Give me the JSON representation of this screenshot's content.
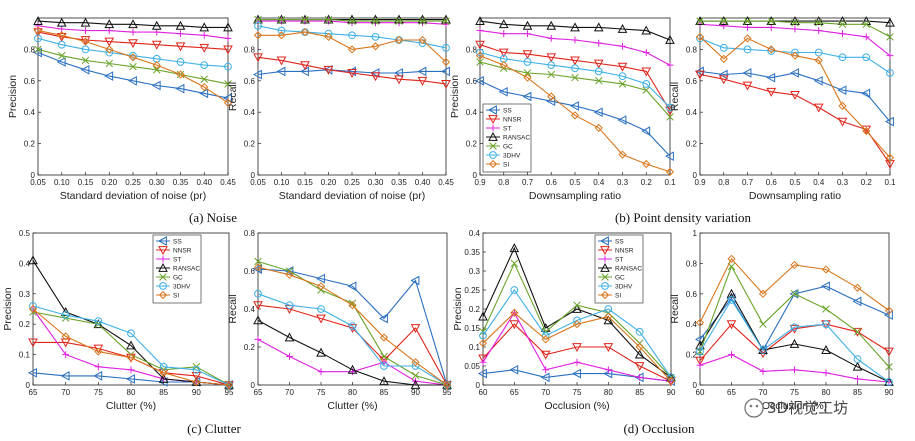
{
  "series_names": [
    "SS",
    "NNSR",
    "ST",
    "RANSAC",
    "GC",
    "3DHV",
    "SI"
  ],
  "series_styles": [
    {
      "name": "SS",
      "color": "#2a6fc0",
      "marker": "tri-left"
    },
    {
      "name": "NNSR",
      "color": "#e0241b",
      "marker": "tri-down"
    },
    {
      "name": "ST",
      "color": "#e020e0",
      "marker": "plus"
    },
    {
      "name": "RANSAC",
      "color": "#111111",
      "marker": "tri-up"
    },
    {
      "name": "GC",
      "color": "#6aa32a",
      "marker": "x"
    },
    {
      "name": "3DHV",
      "color": "#3fb0e6",
      "marker": "circle"
    },
    {
      "name": "SI",
      "color": "#d9761c",
      "marker": "diamond"
    }
  ],
  "captions": {
    "a": "(a)  Noise",
    "b": "(b)  Point density variation",
    "c": "(c)  Clutter",
    "d": "(d)  Occlusion"
  },
  "watermark": "3D视觉工坊",
  "chart_data": [
    {
      "id": "a-precision",
      "type": "line",
      "xlabel": "Standard deviation of noise (pr)",
      "ylabel": "Precision",
      "x": [
        0.05,
        0.1,
        0.15,
        0.2,
        0.25,
        0.3,
        0.35,
        0.4,
        0.45
      ],
      "xticks": [
        "0.05",
        "0.10",
        "0.15",
        "0.20",
        "0.25",
        "0.30",
        "0.35",
        "0.40",
        "0.45"
      ],
      "ylim": [
        0,
        1
      ],
      "yticks": [
        "0",
        "0.2",
        "0.4",
        "0.6",
        "0.8"
      ],
      "legend": false,
      "series": [
        {
          "name": "SS",
          "values": [
            0.78,
            0.72,
            0.67,
            0.63,
            0.6,
            0.57,
            0.55,
            0.52,
            0.49
          ]
        },
        {
          "name": "NNSR",
          "values": [
            0.91,
            0.88,
            0.86,
            0.85,
            0.84,
            0.83,
            0.82,
            0.81,
            0.8
          ]
        },
        {
          "name": "ST",
          "values": [
            0.95,
            0.93,
            0.92,
            0.92,
            0.91,
            0.91,
            0.9,
            0.89,
            0.87
          ]
        },
        {
          "name": "RANSAC",
          "values": [
            0.98,
            0.97,
            0.97,
            0.96,
            0.96,
            0.95,
            0.95,
            0.94,
            0.94
          ]
        },
        {
          "name": "GC",
          "values": [
            0.8,
            0.76,
            0.73,
            0.71,
            0.69,
            0.67,
            0.64,
            0.61,
            0.58
          ]
        },
        {
          "name": "3DHV",
          "values": [
            0.87,
            0.83,
            0.8,
            0.78,
            0.76,
            0.74,
            0.72,
            0.7,
            0.69
          ]
        },
        {
          "name": "SI",
          "values": [
            0.92,
            0.89,
            0.85,
            0.8,
            0.75,
            0.7,
            0.64,
            0.56,
            0.46
          ]
        }
      ]
    },
    {
      "id": "a-recall",
      "type": "line",
      "xlabel": "Standard deviation of noise (pr)",
      "ylabel": "Recall",
      "x": [
        0.05,
        0.1,
        0.15,
        0.2,
        0.25,
        0.3,
        0.35,
        0.4,
        0.45
      ],
      "xticks": [
        "0.05",
        "0.10",
        "0.15",
        "0.20",
        "0.25",
        "0.30",
        "0.35",
        "0.40",
        "0.45"
      ],
      "ylim": [
        0,
        1
      ],
      "yticks": [
        "0",
        "0.2",
        "0.4",
        "0.6",
        "0.8"
      ],
      "legend": false,
      "series": [
        {
          "name": "SS",
          "values": [
            0.64,
            0.66,
            0.66,
            0.67,
            0.66,
            0.65,
            0.65,
            0.66,
            0.66
          ]
        },
        {
          "name": "NNSR",
          "values": [
            0.75,
            0.73,
            0.7,
            0.67,
            0.65,
            0.63,
            0.61,
            0.6,
            0.58
          ]
        },
        {
          "name": "ST",
          "values": [
            0.98,
            0.98,
            0.98,
            0.98,
            0.97,
            0.97,
            0.97,
            0.97,
            0.96
          ]
        },
        {
          "name": "RANSAC",
          "values": [
            0.99,
            0.99,
            0.99,
            0.99,
            0.99,
            0.99,
            0.99,
            0.99,
            0.99
          ]
        },
        {
          "name": "GC",
          "values": [
            0.99,
            0.99,
            0.99,
            0.99,
            0.98,
            0.98,
            0.98,
            0.98,
            0.98
          ]
        },
        {
          "name": "3DHV",
          "values": [
            0.95,
            0.92,
            0.91,
            0.9,
            0.89,
            0.88,
            0.86,
            0.84,
            0.81
          ]
        },
        {
          "name": "SI",
          "values": [
            0.89,
            0.89,
            0.91,
            0.88,
            0.8,
            0.82,
            0.86,
            0.86,
            0.72
          ]
        }
      ]
    },
    {
      "id": "b-precision",
      "type": "line",
      "xlabel": "Downsampling ratio",
      "ylabel": "Precision",
      "x": [
        0.9,
        0.8,
        0.7,
        0.6,
        0.5,
        0.4,
        0.3,
        0.2,
        0.1
      ],
      "xticks": [
        "0.9",
        "0.8",
        "0.7",
        "0.6",
        "0.5",
        "0.4",
        "0.3",
        "0.2",
        "0.1"
      ],
      "ylim": [
        0,
        1
      ],
      "yticks": [
        "0",
        "0.2",
        "0.4",
        "0.6",
        "0.8"
      ],
      "legend": true,
      "legend_pos": "left-middle",
      "series": [
        {
          "name": "SS",
          "values": [
            0.6,
            0.53,
            0.5,
            0.47,
            0.44,
            0.4,
            0.35,
            0.28,
            0.12
          ]
        },
        {
          "name": "NNSR",
          "values": [
            0.83,
            0.78,
            0.77,
            0.75,
            0.73,
            0.71,
            0.69,
            0.66,
            0.41
          ]
        },
        {
          "name": "ST",
          "values": [
            0.92,
            0.9,
            0.9,
            0.87,
            0.86,
            0.84,
            0.82,
            0.78,
            0.7
          ]
        },
        {
          "name": "RANSAC",
          "values": [
            0.98,
            0.96,
            0.95,
            0.95,
            0.94,
            0.94,
            0.93,
            0.92,
            0.86
          ]
        },
        {
          "name": "GC",
          "values": [
            0.72,
            0.68,
            0.65,
            0.64,
            0.62,
            0.6,
            0.58,
            0.54,
            0.37
          ]
        },
        {
          "name": "3DHV",
          "values": [
            0.78,
            0.74,
            0.72,
            0.7,
            0.68,
            0.66,
            0.63,
            0.58,
            0.43
          ]
        },
        {
          "name": "SI",
          "values": [
            0.76,
            0.7,
            0.62,
            0.5,
            0.38,
            0.3,
            0.13,
            0.07,
            0.02
          ]
        }
      ]
    },
    {
      "id": "b-recall",
      "type": "line",
      "xlabel": "Downsampling ratio",
      "ylabel": "Recall",
      "x": [
        0.9,
        0.8,
        0.7,
        0.6,
        0.5,
        0.4,
        0.3,
        0.2,
        0.1
      ],
      "xticks": [
        "0.9",
        "0.8",
        "0.7",
        "0.6",
        "0.5",
        "0.4",
        "0.3",
        "0.2",
        "0.1"
      ],
      "ylim": [
        0,
        1
      ],
      "yticks": [
        "0",
        "0.2",
        "0.4",
        "0.6",
        "0.8"
      ],
      "legend": false,
      "series": [
        {
          "name": "SS",
          "values": [
            0.66,
            0.64,
            0.65,
            0.62,
            0.65,
            0.6,
            0.54,
            0.52,
            0.34
          ]
        },
        {
          "name": "NNSR",
          "values": [
            0.64,
            0.61,
            0.57,
            0.53,
            0.51,
            0.43,
            0.34,
            0.29,
            0.07
          ]
        },
        {
          "name": "ST",
          "values": [
            0.96,
            0.95,
            0.94,
            0.94,
            0.93,
            0.92,
            0.9,
            0.88,
            0.76
          ]
        },
        {
          "name": "RANSAC",
          "values": [
            0.98,
            0.98,
            0.98,
            0.98,
            0.98,
            0.98,
            0.98,
            0.98,
            0.97
          ]
        },
        {
          "name": "GC",
          "values": [
            0.98,
            0.98,
            0.98,
            0.98,
            0.97,
            0.97,
            0.96,
            0.96,
            0.88
          ]
        },
        {
          "name": "3DHV",
          "values": [
            0.87,
            0.81,
            0.8,
            0.79,
            0.78,
            0.78,
            0.75,
            0.75,
            0.65
          ]
        },
        {
          "name": "SI",
          "values": [
            0.88,
            0.74,
            0.87,
            0.8,
            0.76,
            0.73,
            0.44,
            0.28,
            0.11
          ]
        }
      ]
    },
    {
      "id": "c-precision",
      "type": "line",
      "xlabel": "Clutter (%)",
      "ylabel": "Precision",
      "x": [
        65,
        70,
        75,
        80,
        85,
        90,
        95
      ],
      "xticks": [
        "65",
        "70",
        "75",
        "80",
        "85",
        "90",
        "95"
      ],
      "ylim": [
        0,
        0.5
      ],
      "yticks": [
        "0",
        "0.1",
        "0.2",
        "0.3",
        "0.4",
        "0.5"
      ],
      "legend": true,
      "legend_pos": "top-right",
      "series": [
        {
          "name": "SS",
          "values": [
            0.04,
            0.03,
            0.03,
            0.02,
            0.01,
            0.01,
            0.0
          ]
        },
        {
          "name": "NNSR",
          "values": [
            0.14,
            0.14,
            0.12,
            0.09,
            0.04,
            0.03,
            0.0
          ]
        },
        {
          "name": "ST",
          "values": [
            0.25,
            0.1,
            0.06,
            0.05,
            0.02,
            0.01,
            0.0
          ]
        },
        {
          "name": "RANSAC",
          "values": [
            0.41,
            0.24,
            0.2,
            0.13,
            0.02,
            0.01,
            0.0
          ]
        },
        {
          "name": "GC",
          "values": [
            0.24,
            0.22,
            0.2,
            0.1,
            0.05,
            0.06,
            0.0
          ]
        },
        {
          "name": "3DHV",
          "values": [
            0.26,
            0.23,
            0.21,
            0.17,
            0.06,
            0.05,
            0.0
          ]
        },
        {
          "name": "SI",
          "values": [
            0.25,
            0.16,
            0.11,
            0.09,
            0.04,
            0.01,
            0.0
          ]
        }
      ]
    },
    {
      "id": "c-recall",
      "type": "line",
      "xlabel": "Clutter (%)",
      "ylabel": "Recall",
      "x": [
        65,
        70,
        75,
        80,
        85,
        90,
        95
      ],
      "xticks": [
        "65",
        "70",
        "75",
        "80",
        "85",
        "90",
        "95"
      ],
      "ylim": [
        0,
        0.8
      ],
      "yticks": [
        "0",
        "0.2",
        "0.4",
        "0.6",
        "0.8"
      ],
      "legend": false,
      "series": [
        {
          "name": "SS",
          "values": [
            0.61,
            0.6,
            0.56,
            0.52,
            0.35,
            0.55,
            0.0
          ]
        },
        {
          "name": "NNSR",
          "values": [
            0.42,
            0.4,
            0.35,
            0.3,
            0.13,
            0.3,
            0.0
          ]
        },
        {
          "name": "ST",
          "values": [
            0.24,
            0.15,
            0.07,
            0.07,
            0.12,
            0.02,
            0.0
          ]
        },
        {
          "name": "RANSAC",
          "values": [
            0.34,
            0.25,
            0.17,
            0.08,
            0.02,
            0.0,
            0.0
          ]
        },
        {
          "name": "GC",
          "values": [
            0.65,
            0.6,
            0.5,
            0.43,
            0.15,
            0.05,
            0.0
          ]
        },
        {
          "name": "3DHV",
          "values": [
            0.48,
            0.42,
            0.4,
            0.31,
            0.1,
            0.1,
            0.0
          ]
        },
        {
          "name": "SI",
          "values": [
            0.62,
            0.58,
            0.52,
            0.42,
            0.25,
            0.12,
            0.0
          ]
        }
      ]
    },
    {
      "id": "d-precision",
      "type": "line",
      "xlabel": "Occlusion (%)",
      "ylabel": "Precision",
      "x": [
        60,
        65,
        70,
        75,
        80,
        85,
        90
      ],
      "xticks": [
        "60",
        "65",
        "70",
        "75",
        "80",
        "85",
        "90"
      ],
      "ylim": [
        0,
        0.4
      ],
      "yticks": [
        "0",
        "0.05",
        "0.1",
        "0.15",
        "0.2",
        "0.25",
        "0.3",
        "0.35",
        "0.4"
      ],
      "legend": true,
      "legend_pos": "top-right",
      "series": [
        {
          "name": "SS",
          "values": [
            0.03,
            0.04,
            0.02,
            0.03,
            0.03,
            0.02,
            0.01
          ]
        },
        {
          "name": "NNSR",
          "values": [
            0.07,
            0.16,
            0.08,
            0.1,
            0.1,
            0.05,
            0.01
          ]
        },
        {
          "name": "ST",
          "values": [
            0.06,
            0.19,
            0.04,
            0.06,
            0.04,
            0.02,
            0.01
          ]
        },
        {
          "name": "RANSAC",
          "values": [
            0.18,
            0.36,
            0.15,
            0.2,
            0.17,
            0.08,
            0.02
          ]
        },
        {
          "name": "GC",
          "values": [
            0.14,
            0.32,
            0.14,
            0.21,
            0.19,
            0.11,
            0.02
          ]
        },
        {
          "name": "3DHV",
          "values": [
            0.13,
            0.25,
            0.13,
            0.17,
            0.2,
            0.14,
            0.02
          ]
        },
        {
          "name": "SI",
          "values": [
            0.11,
            0.19,
            0.12,
            0.16,
            0.18,
            0.1,
            0.01
          ]
        }
      ]
    },
    {
      "id": "d-recall",
      "type": "line",
      "xlabel": "Occlusion (%)",
      "ylabel": "Recall",
      "x": [
        60,
        65,
        70,
        75,
        80,
        85,
        90
      ],
      "xticks": [
        "60",
        "65",
        "70",
        "75",
        "80",
        "85",
        "90"
      ],
      "ylim": [
        0,
        1
      ],
      "yticks": [
        "0",
        "0.2",
        "0.4",
        "0.6",
        "0.8",
        "1"
      ],
      "legend": false,
      "series": [
        {
          "name": "SS",
          "values": [
            0.3,
            0.57,
            0.23,
            0.6,
            0.65,
            0.55,
            0.46
          ]
        },
        {
          "name": "NNSR",
          "values": [
            0.16,
            0.4,
            0.21,
            0.37,
            0.4,
            0.35,
            0.22
          ]
        },
        {
          "name": "ST",
          "values": [
            0.13,
            0.2,
            0.09,
            0.1,
            0.08,
            0.04,
            0.02
          ]
        },
        {
          "name": "RANSAC",
          "values": [
            0.26,
            0.6,
            0.23,
            0.27,
            0.23,
            0.12,
            0.02
          ]
        },
        {
          "name": "GC",
          "values": [
            0.22,
            0.78,
            0.4,
            0.6,
            0.5,
            0.35,
            0.12
          ]
        },
        {
          "name": "3DHV",
          "values": [
            0.22,
            0.56,
            0.23,
            0.38,
            0.4,
            0.17,
            0.02
          ]
        },
        {
          "name": "SI",
          "values": [
            0.41,
            0.83,
            0.6,
            0.79,
            0.76,
            0.64,
            0.49
          ]
        }
      ]
    }
  ]
}
